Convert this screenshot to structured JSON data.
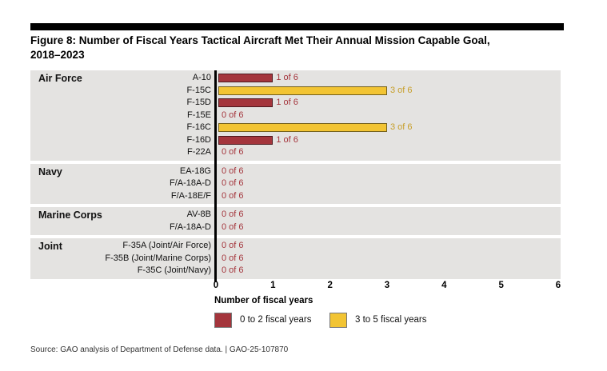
{
  "figure": {
    "title": "Figure 8: Number of Fiscal Years Tactical Aircraft Met Their Annual Mission Capable Goal,\n2018–2023",
    "source": "Source: GAO analysis of Department of Defense data.  |  GAO-25-107870"
  },
  "chart_data": {
    "type": "bar",
    "orientation": "horizontal",
    "title": "Figure 8: Number of Fiscal Years Tactical Aircraft Met Their Annual Mission Capable Goal, 2018–2023",
    "xlabel": "Number of fiscal years",
    "xlim": [
      0,
      6
    ],
    "xticks": [
      0,
      1,
      2,
      3,
      4,
      5,
      6
    ],
    "grid": false,
    "legend_position": "bottom",
    "colors": {
      "low": "#A4353C",
      "low_border": "#4E1A1F",
      "low_text": "#A4353C",
      "high": "#F2C433",
      "high_border": "#73601C",
      "high_text": "#C79F2A",
      "band_bg": "#E4E3E1",
      "axis": "#000000"
    },
    "legend": [
      {
        "label": "0 to 2 fiscal years",
        "key": "low"
      },
      {
        "label": "3 to 5 fiscal years",
        "key": "high"
      }
    ],
    "groups": [
      {
        "name": "Air Force",
        "rows": [
          {
            "aircraft": "A-10",
            "value": 1,
            "label": "1 of 6",
            "key": "low"
          },
          {
            "aircraft": "F-15C",
            "value": 3,
            "label": "3 of 6",
            "key": "high"
          },
          {
            "aircraft": "F-15D",
            "value": 1,
            "label": "1 of 6",
            "key": "low"
          },
          {
            "aircraft": "F-15E",
            "value": 0,
            "label": "0 of 6",
            "key": "low"
          },
          {
            "aircraft": "F-16C",
            "value": 3,
            "label": "3 of 6",
            "key": "high"
          },
          {
            "aircraft": "F-16D",
            "value": 1,
            "label": "1 of 6",
            "key": "low"
          },
          {
            "aircraft": "F-22A",
            "value": 0,
            "label": "0 of 6",
            "key": "low"
          }
        ]
      },
      {
        "name": "Navy",
        "rows": [
          {
            "aircraft": "EA-18G",
            "value": 0,
            "label": "0 of 6",
            "key": "low"
          },
          {
            "aircraft": "F/A-18A-D",
            "value": 0,
            "label": "0 of 6",
            "key": "low"
          },
          {
            "aircraft": "F/A-18E/F",
            "value": 0,
            "label": "0 of 6",
            "key": "low"
          }
        ]
      },
      {
        "name": "Marine Corps",
        "rows": [
          {
            "aircraft": "AV-8B",
            "value": 0,
            "label": "0 of 6",
            "key": "low"
          },
          {
            "aircraft": "F/A-18A-D",
            "value": 0,
            "label": "0 of 6",
            "key": "low"
          }
        ]
      },
      {
        "name": "Joint",
        "rows": [
          {
            "aircraft": "F-35A (Joint/Air Force)",
            "value": 0,
            "label": "0 of 6",
            "key": "low"
          },
          {
            "aircraft": "F-35B (Joint/Marine Corps)",
            "value": 0,
            "label": "0 of 6",
            "key": "low"
          },
          {
            "aircraft": "F-35C (Joint/Navy)",
            "value": 0,
            "label": "0 of 6",
            "key": "low"
          }
        ]
      }
    ]
  }
}
